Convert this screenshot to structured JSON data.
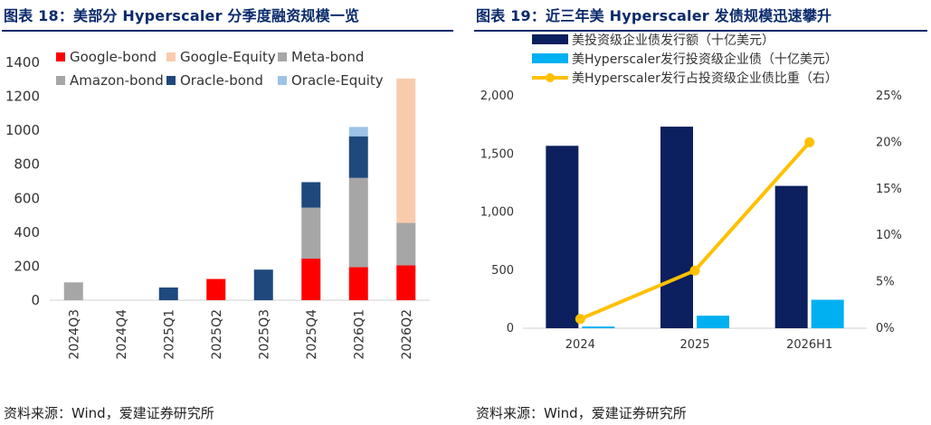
{
  "left": {
    "title": "图表 18：美部分 Hyperscaler 分季度融资规模一览",
    "source": "资料来源：Wind，爱建证券研究所"
  },
  "right": {
    "title": "图表 19：近三年美 Hyperscaler 发债规模迅速攀升",
    "source": "资料来源：Wind，爱建证券研究所"
  },
  "colors": {
    "Google-bond": "#ff0000",
    "Google-Equity": "#f8cbad",
    "Meta-bond": "#a6a6a6",
    "Amazon-bond": "#a6a6a6",
    "Oracle-bond": "#1f497d",
    "Oracle-Equity": "#9dc3e6",
    "total_bar": "#0c1f5e",
    "hyper_bar": "#00b0f0",
    "ratio_line": "#ffc000"
  },
  "chart_data": [
    {
      "type": "bar",
      "stacked": true,
      "categories": [
        "2024Q3",
        "2024Q4",
        "2025Q1",
        "2025Q2",
        "2025Q3",
        "2025Q4",
        "2026Q1",
        "2026Q2"
      ],
      "series": [
        {
          "name": "Google-bond",
          "values": [
            0,
            0,
            0,
            125,
            0,
            245,
            195,
            205
          ]
        },
        {
          "name": "Google-Equity",
          "values": [
            0,
            0,
            0,
            0,
            0,
            0,
            0,
            850
          ]
        },
        {
          "name": "Meta-bond",
          "values": [
            0,
            0,
            0,
            0,
            0,
            300,
            0,
            250
          ]
        },
        {
          "name": "Amazon-bond",
          "values": [
            105,
            0,
            0,
            0,
            0,
            0,
            525,
            0
          ]
        },
        {
          "name": "Oracle-bond",
          "values": [
            0,
            0,
            75,
            0,
            180,
            150,
            245,
            0
          ]
        },
        {
          "name": "Oracle-Equity",
          "values": [
            0,
            0,
            0,
            0,
            0,
            0,
            55,
            0
          ]
        }
      ],
      "ylim": [
        0,
        1400
      ],
      "yticks": [
        0,
        200,
        400,
        600,
        800,
        1000,
        1200,
        1400
      ],
      "legend": "top-left",
      "grid": false
    },
    {
      "type": "bar+line",
      "categories": [
        "2024",
        "2025",
        "2026H1"
      ],
      "series": [
        {
          "name": "美投资级企业债发行额（十亿美元）",
          "type": "bar",
          "axis": "left",
          "values": [
            1570,
            1735,
            1225
          ]
        },
        {
          "name": "美Hyperscaler发行投资级企业债（十亿美元）",
          "type": "bar",
          "axis": "left",
          "values": [
            15,
            108,
            245
          ]
        },
        {
          "name": "美Hyperscaler发行占投资级企业债比重（右）",
          "type": "line",
          "axis": "right",
          "values": [
            0.01,
            0.062,
            0.2
          ]
        }
      ],
      "ylim": [
        0,
        2000
      ],
      "yticks": [
        "0",
        "500",
        "1,000",
        "1,500",
        "2,000"
      ],
      "y2lim": [
        0,
        0.25
      ],
      "y2ticks": [
        "0%",
        "5%",
        "10%",
        "15%",
        "20%",
        "25%"
      ],
      "legend": "top",
      "grid": false
    }
  ]
}
